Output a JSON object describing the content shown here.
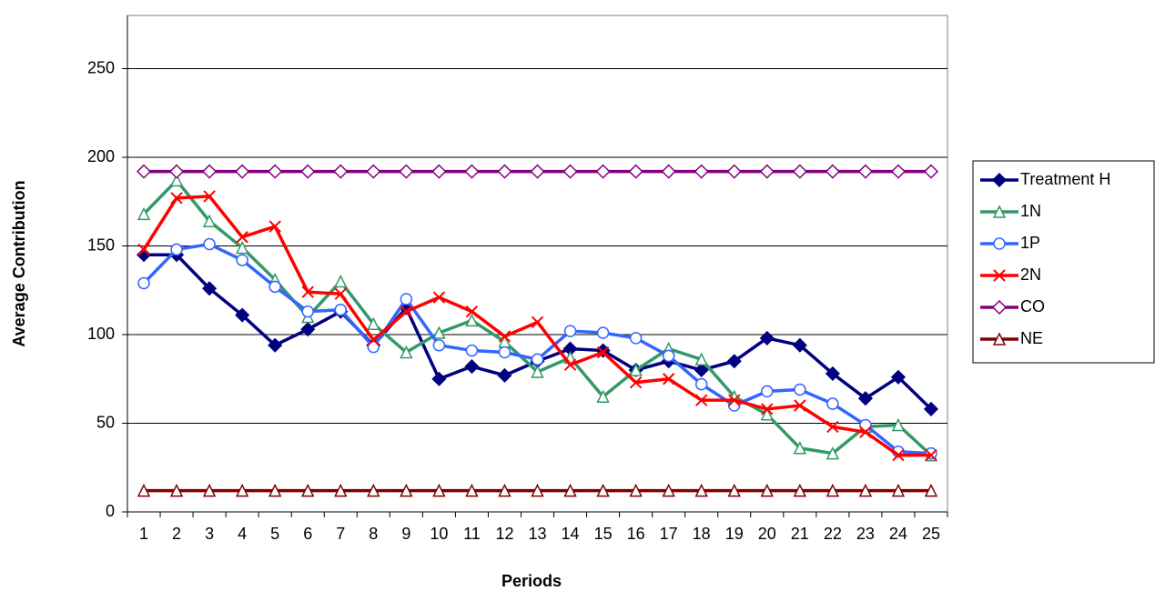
{
  "chart_data": {
    "type": "line",
    "x_label": "Periods",
    "y_label": "Average Contribution",
    "categories": [
      "1",
      "2",
      "3",
      "4",
      "5",
      "6",
      "7",
      "8",
      "9",
      "10",
      "11",
      "12",
      "13",
      "14",
      "15",
      "16",
      "17",
      "18",
      "19",
      "20",
      "21",
      "22",
      "23",
      "24",
      "25"
    ],
    "ylim": [
      0,
      280
    ],
    "yticks": [
      0,
      50,
      100,
      150,
      200,
      250
    ],
    "grid": true,
    "legend": "right",
    "series": [
      {
        "name": "Treatment H",
        "color": "#000080",
        "marker": "diamond-filled",
        "values": [
          145,
          145,
          126,
          111,
          94,
          103,
          113,
          94,
          115,
          75,
          82,
          77,
          85,
          92,
          91,
          80,
          85,
          80,
          85,
          98,
          94,
          78,
          64,
          76,
          58
        ]
      },
      {
        "name": "1N",
        "color": "#339966",
        "marker": "triangle-open",
        "values": [
          168,
          187,
          164,
          149,
          131,
          110,
          130,
          106,
          90,
          101,
          108,
          96,
          79,
          87,
          65,
          80,
          92,
          86,
          65,
          55,
          36,
          33,
          48,
          49,
          32
        ]
      },
      {
        "name": "1P",
        "color": "#3366ff",
        "marker": "circle-open",
        "values": [
          129,
          148,
          151,
          142,
          127,
          113,
          114,
          93,
          120,
          94,
          91,
          90,
          86,
          102,
          101,
          98,
          88,
          72,
          60,
          68,
          69,
          61,
          49,
          34,
          33
        ]
      },
      {
        "name": "2N",
        "color": "#ff0000",
        "marker": "cross",
        "values": [
          148,
          177,
          178,
          155,
          161,
          124,
          123,
          97,
          113,
          121,
          113,
          99,
          107,
          83,
          90,
          73,
          75,
          63,
          63,
          58,
          60,
          48,
          45,
          32,
          32
        ]
      },
      {
        "name": "CO",
        "color": "#800080",
        "marker": "diamond-open",
        "values": [
          192,
          192,
          192,
          192,
          192,
          192,
          192,
          192,
          192,
          192,
          192,
          192,
          192,
          192,
          192,
          192,
          192,
          192,
          192,
          192,
          192,
          192,
          192,
          192,
          192
        ]
      },
      {
        "name": "NE",
        "color": "#800000",
        "marker": "triangle-open",
        "values": [
          12,
          12,
          12,
          12,
          12,
          12,
          12,
          12,
          12,
          12,
          12,
          12,
          12,
          12,
          12,
          12,
          12,
          12,
          12,
          12,
          12,
          12,
          12,
          12,
          12
        ]
      }
    ]
  }
}
